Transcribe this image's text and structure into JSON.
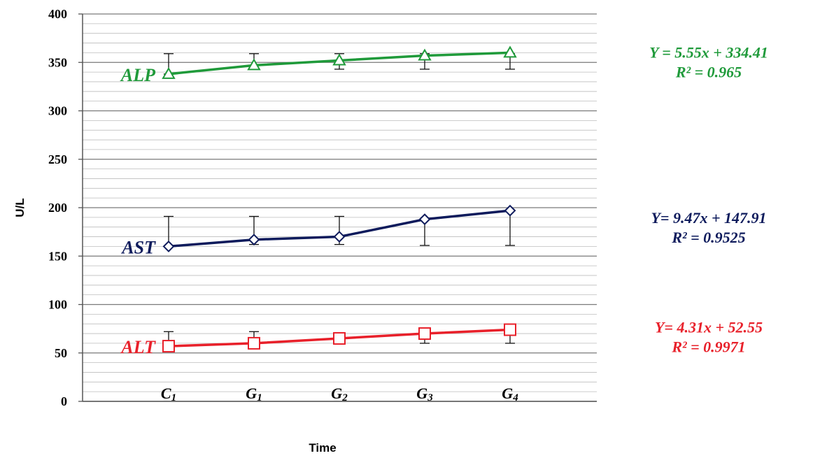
{
  "chart_data": {
    "type": "line",
    "xlabel": "Time",
    "ylabel": "U/L",
    "ylim": [
      0,
      400
    ],
    "ytick_step": 50,
    "grid": "horizontal",
    "categories": [
      {
        "base": "C",
        "sub": "1"
      },
      {
        "base": "G",
        "sub": "1"
      },
      {
        "base": "G",
        "sub": "2"
      },
      {
        "base": "G",
        "sub": "3"
      },
      {
        "base": "G",
        "sub": "4"
      }
    ],
    "series": [
      {
        "name": "ALP",
        "color": "#1f9a3a",
        "marker": "triangle",
        "values": [
          338,
          347,
          352,
          357,
          360
        ],
        "error_low": [
          338,
          347,
          343,
          343,
          343
        ],
        "error_high": [
          359,
          359,
          359,
          359,
          359
        ],
        "equation": "Y = 5.55x + 334.41",
        "r2": "R² = 0.965"
      },
      {
        "name": "AST",
        "color": "#0e1b5c",
        "marker": "diamond",
        "values": [
          160,
          167,
          170,
          188,
          197
        ],
        "error_low": [
          160,
          162,
          162,
          161,
          161
        ],
        "error_high": [
          191,
          191,
          191,
          188,
          197
        ],
        "equation": "Y= 9.47x + 147.91",
        "r2": "R² = 0.9525"
      },
      {
        "name": "ALT",
        "color": "#e8202a",
        "marker": "square",
        "values": [
          57,
          60,
          65,
          70,
          74
        ],
        "error_low": [
          57,
          60,
          60,
          60,
          60
        ],
        "error_high": [
          72,
          72,
          65,
          70,
          74
        ],
        "equation": "Y= 4.31x + 52.55",
        "r2": "R² = 0.9971"
      }
    ]
  }
}
